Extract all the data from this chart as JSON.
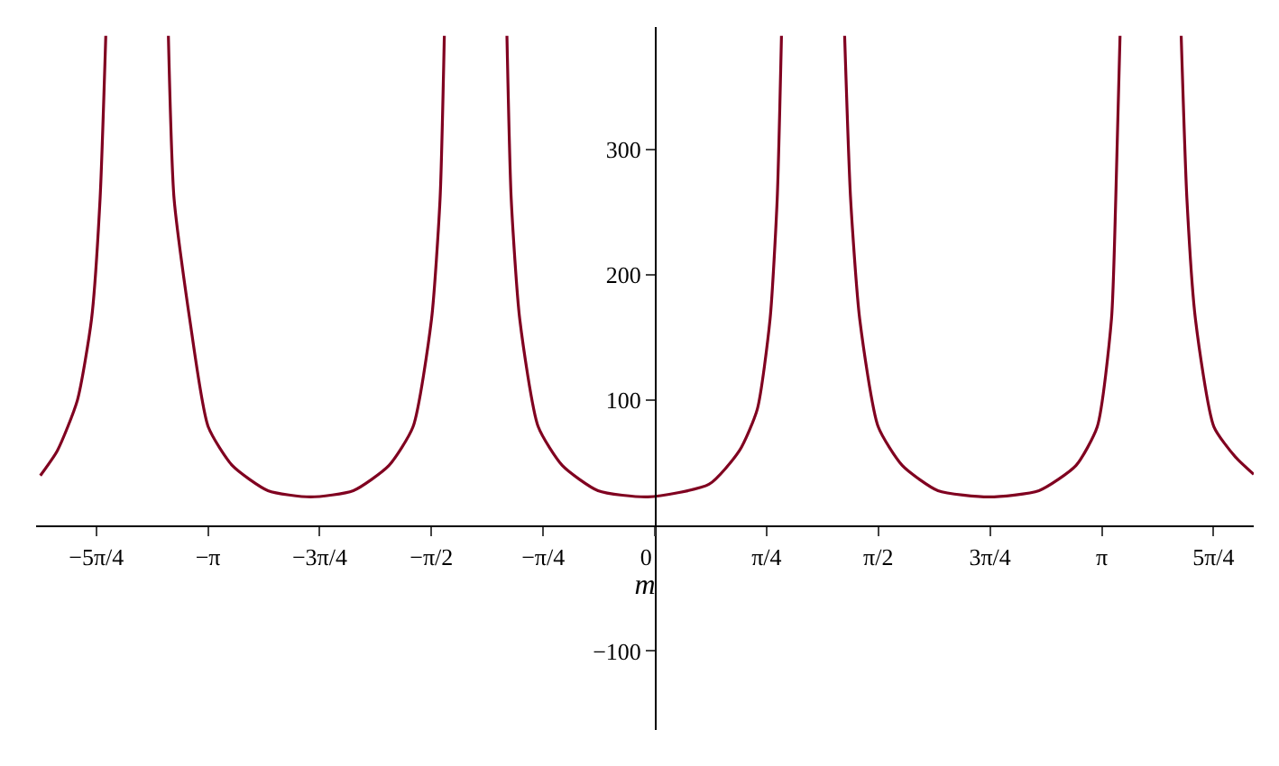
{
  "chart_data": {
    "type": "line",
    "xlabel": "m",
    "xlim": [
      -4.35,
      4.21
    ],
    "ylim": [
      -163,
      398
    ],
    "xticks": [
      {
        "value": -3.927,
        "label": "−5π/4"
      },
      {
        "value": -3.1416,
        "label": "−π"
      },
      {
        "value": -2.3562,
        "label": "−3π/4"
      },
      {
        "value": -1.5708,
        "label": "−π/2"
      },
      {
        "value": -0.7854,
        "label": "−π/4"
      },
      {
        "value": 0,
        "label": "0"
      },
      {
        "value": 0.7854,
        "label": "π/4"
      },
      {
        "value": 1.5708,
        "label": "π/2"
      },
      {
        "value": 2.3562,
        "label": "3π/4"
      },
      {
        "value": 3.1416,
        "label": "π"
      },
      {
        "value": 3.927,
        "label": "5π/4"
      }
    ],
    "yticks": [
      -100,
      100,
      200,
      300
    ],
    "series": [
      {
        "color": "#800020",
        "x": [
          -4.32,
          -4.2,
          -4.06,
          -3.96,
          -3.9,
          -3.86,
          null,
          -3.42,
          -3.38,
          -3.27,
          -3.14,
          -2.97,
          -2.72,
          -2.42,
          -2.12,
          -1.87,
          -1.7,
          -1.57,
          -1.51,
          -1.48,
          null,
          -1.04,
          -1.01,
          -0.95,
          -0.82,
          -0.65,
          -0.4,
          -0.05,
          0.38,
          0.595,
          0.72,
          0.81,
          0.86,
          0.89,
          null,
          1.334,
          1.376,
          1.44,
          1.57,
          1.74,
          1.99,
          2.35,
          2.7,
          2.96,
          3.11,
          3.21,
          3.24,
          3.27,
          null,
          3.7,
          3.74,
          3.8,
          3.93,
          4.08,
          4.21
        ],
        "values": [
          40,
          60,
          100,
          165,
          261,
          391,
          null,
          391,
          261,
          165,
          79,
          48,
          28,
          23,
          28,
          48,
          79,
          165,
          261,
          391,
          null,
          391,
          261,
          165,
          79,
          48,
          28,
          23,
          33,
          60,
          93,
          165,
          261,
          391,
          null,
          391,
          261,
          165,
          79,
          48,
          28,
          23,
          28,
          48,
          79,
          165,
          261,
          391,
          null,
          391,
          261,
          165,
          79,
          55,
          41
        ]
      }
    ]
  }
}
